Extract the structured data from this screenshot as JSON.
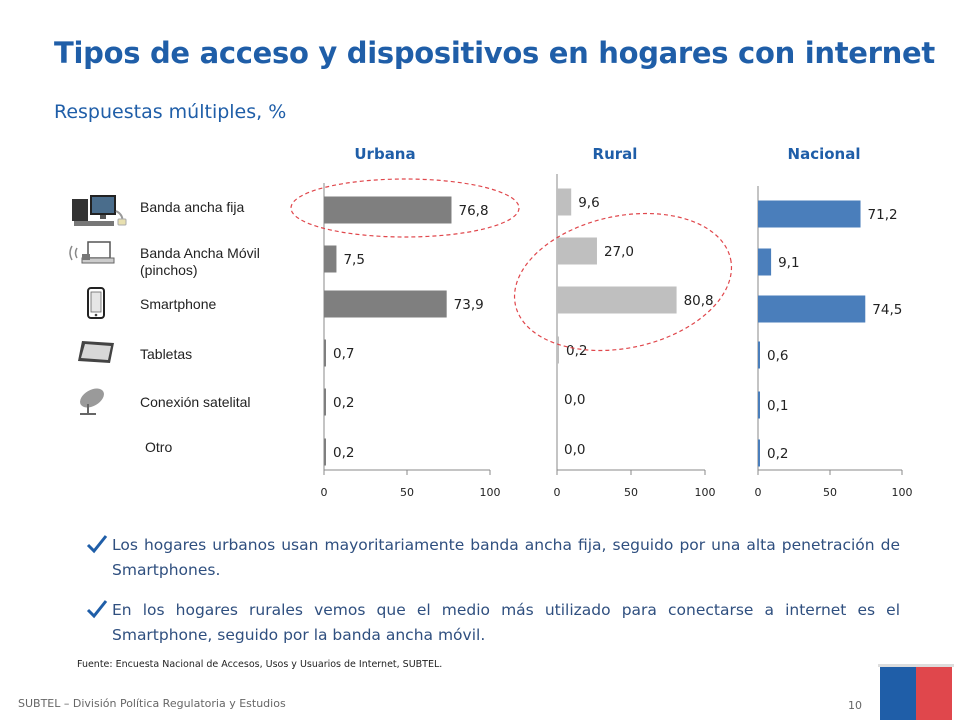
{
  "page": {
    "title": "Tipos de acceso y dispositivos en hogares con internet",
    "subtitle": "Respuestas múltiples, %",
    "source": "Fuente: Encuesta Nacional de Accesos, Usos y Usuarios de Internet, SUBTEL.",
    "footer": "SUBTEL – División Política Regulatoria y Estudios",
    "page_number": "10"
  },
  "categories": [
    {
      "label": "Banda ancha fija",
      "icon": "desktop-computer-icon"
    },
    {
      "label": "Banda Ancha Móvil (pinchos)",
      "icon": "usb-modem-icon"
    },
    {
      "label": "Smartphone",
      "icon": "smartphone-icon"
    },
    {
      "label": "Tabletas",
      "icon": "tablet-icon"
    },
    {
      "label": "Conexión satelital",
      "icon": "satellite-dish-icon"
    },
    {
      "label": "Otro",
      "icon": ""
    }
  ],
  "bullets": [
    "Los hogares urbanos usan mayoritariamente banda ancha fija, seguido por una alta penetración de Smartphones.",
    "En los hogares rurales vemos que el medio más utilizado para conectarse a internet es el Smartphone, seguido por la banda ancha móvil."
  ],
  "colors": {
    "title": "#1f5ea8",
    "urbana_bar": "#7f7f7f",
    "rural_bar": "#bfbfbf",
    "nacional_bar": "#4a7ebb",
    "highlight_ellipse": "#e0474c",
    "check": "#1f5ea8"
  },
  "chart_data": [
    {
      "type": "bar",
      "orientation": "horizontal",
      "title": "Urbana",
      "categories": [
        "Banda ancha fija",
        "Banda Ancha Móvil (pinchos)",
        "Smartphone",
        "Tabletas",
        "Conexión satelital",
        "Otro"
      ],
      "values": [
        76.8,
        7.5,
        73.9,
        0.7,
        0.2,
        0.2
      ],
      "labels": [
        "76,8",
        "7,5",
        "73,9",
        "0,7",
        "0,2",
        "0,2"
      ],
      "xlim": [
        0,
        100
      ],
      "xticks": [
        "0",
        "50",
        "100"
      ],
      "grid": false,
      "highlight": "Banda ancha fija"
    },
    {
      "type": "bar",
      "orientation": "horizontal",
      "title": "Rural",
      "categories": [
        "Banda ancha fija",
        "Banda Ancha Móvil (pinchos)",
        "Smartphone",
        "Tabletas",
        "Conexión satelital",
        "Otro"
      ],
      "values": [
        9.6,
        27.0,
        80.8,
        0.2,
        0.0,
        0.0
      ],
      "labels": [
        "9,6",
        "27,0",
        "80,8",
        "0,2",
        "0,0",
        "0,0"
      ],
      "xlim": [
        0,
        100
      ],
      "xticks": [
        "0",
        "50",
        "100"
      ],
      "grid": false,
      "highlight": "Banda Ancha Móvil (pinchos) + Smartphone"
    },
    {
      "type": "bar",
      "orientation": "horizontal",
      "title": "Nacional",
      "categories": [
        "Banda ancha fija",
        "Banda Ancha Móvil (pinchos)",
        "Smartphone",
        "Tabletas",
        "Conexión satelital",
        "Otro"
      ],
      "values": [
        71.2,
        9.1,
        74.5,
        0.6,
        0.1,
        0.2
      ],
      "labels": [
        "71,2",
        "9,1",
        "74,5",
        "0,6",
        "0,1",
        "0,2"
      ],
      "xlim": [
        0,
        100
      ],
      "xticks": [
        "0",
        "50",
        "100"
      ],
      "grid": false
    }
  ]
}
